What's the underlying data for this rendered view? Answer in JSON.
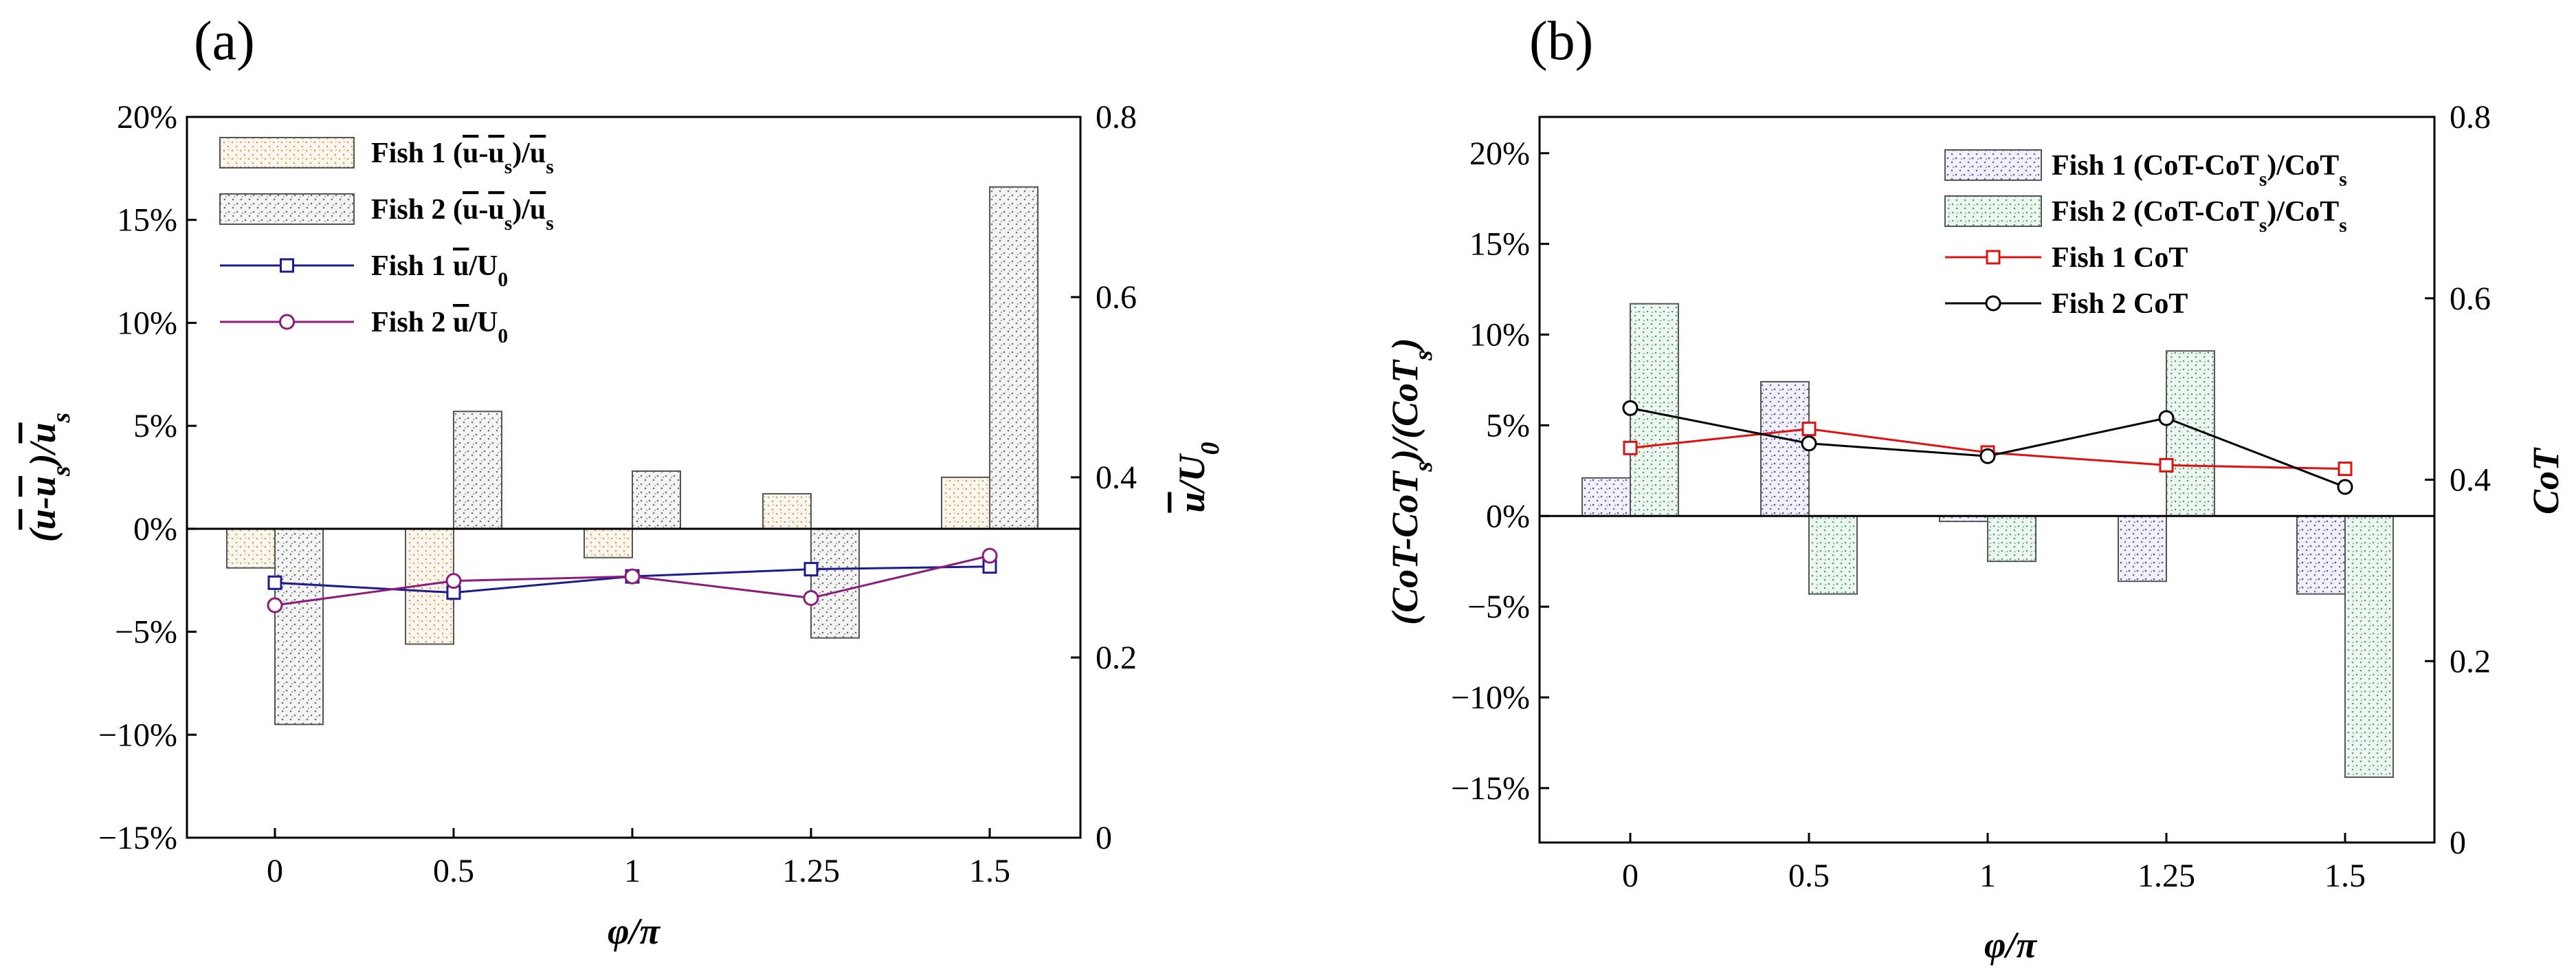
{
  "chart_data": [
    {
      "panel_label": "(a)",
      "type": "bar",
      "title": "",
      "categories": [
        "0",
        "0.5",
        "1",
        "1.25",
        "1.5"
      ],
      "xlabel": "φ/π",
      "ylabel": "(ū-ū_s)/ū_s",
      "ylabel_parts": [
        "(",
        "u",
        "-",
        "u",
        "s",
        ")/",
        "u",
        "s"
      ],
      "y2label": "ū/U₀",
      "y2label_parts": [
        "u",
        "/U",
        "0"
      ],
      "ylim": [
        -15,
        20
      ],
      "y_ticks": [
        20,
        15,
        10,
        5,
        0,
        -5,
        -10,
        -15
      ],
      "y_tick_labels": [
        "20%",
        "15%",
        "10%",
        "5%",
        "0%",
        "−5%",
        "−10%",
        "−15%"
      ],
      "y2lim": [
        0,
        0.8
      ],
      "y2_ticks": [
        0.8,
        0.6,
        0.4,
        0.2,
        0
      ],
      "y2_tick_labels": [
        "0.8",
        "0.6",
        "0.4",
        "0.2",
        "0"
      ],
      "legend_position": "top-left",
      "series": [
        {
          "name": "Fish 1 (ū-ū_s)/ū_s",
          "kind": "bar",
          "axis": "left",
          "color": "#c8a060",
          "legend_parts": [
            "Fish 1 (",
            "u",
            "-",
            "u",
            "s",
            ")/",
            "u",
            "s"
          ],
          "values": [
            -1.9,
            -5.6,
            -1.4,
            1.7,
            2.5
          ]
        },
        {
          "name": "Fish 2 (ū-ū_s)/ū_s",
          "kind": "bar",
          "axis": "left",
          "color": "#707070",
          "legend_parts": [
            "Fish 2 (",
            "u",
            "-",
            "u",
            "s",
            ")/",
            "u",
            "s"
          ],
          "values": [
            -9.5,
            5.7,
            2.8,
            -5.3,
            16.6
          ]
        },
        {
          "name": "Fish 1 ū/U₀",
          "kind": "line",
          "axis": "right",
          "marker": "square",
          "color": "#1c1c8c",
          "legend_parts": [
            "Fish 1 ",
            "u",
            "/U",
            "0"
          ],
          "values": [
            0.283,
            0.272,
            0.29,
            0.298,
            0.301
          ]
        },
        {
          "name": "Fish 2 ū/U₀",
          "kind": "line",
          "axis": "right",
          "marker": "circle",
          "color": "#8c1c7c",
          "legend_parts": [
            "Fish 2 ",
            "u",
            "/U",
            "0"
          ],
          "values": [
            0.258,
            0.285,
            0.29,
            0.266,
            0.313
          ]
        }
      ]
    },
    {
      "panel_label": "(b)",
      "type": "bar",
      "title": "",
      "categories": [
        "0",
        "0.5",
        "1",
        "1.25",
        "1.5"
      ],
      "xlabel": "φ/π",
      "ylabel": "(CoT-CoT_s)/(CoT_s)",
      "ylabel_parts": [
        "(CoT-CoT",
        "s",
        ")/(CoT",
        "s",
        ")"
      ],
      "y2label": "CoT",
      "y2label_parts": [
        "CoT"
      ],
      "ylim": [
        -18,
        22
      ],
      "y_ticks": [
        20,
        15,
        10,
        5,
        0,
        -5,
        -10,
        -15
      ],
      "y_tick_labels": [
        "20%",
        "15%",
        "10%",
        "5%",
        "0%",
        "−5%",
        "−10%",
        "−15%"
      ],
      "y2lim": [
        0,
        0.8
      ],
      "y2_ticks": [
        0.8,
        0.6,
        0.4,
        0.2,
        0
      ],
      "y2_tick_labels": [
        "0.8",
        "0.6",
        "0.4",
        "0.2",
        "0"
      ],
      "legend_position": "top-right",
      "series": [
        {
          "name": "Fish 1 (CoT-CoT_s)/CoT_s",
          "kind": "bar",
          "axis": "left",
          "color": "#5050b0",
          "legend_parts": [
            "Fish 1 (CoT-CoT",
            "s",
            ")/CoT",
            "s"
          ],
          "values": [
            2.1,
            7.4,
            -0.3,
            -3.6,
            -4.3
          ]
        },
        {
          "name": "Fish 2 (CoT-CoT_s)/CoT_s",
          "kind": "bar",
          "axis": "left",
          "color": "#50a070",
          "legend_parts": [
            "Fish 2 (CoT-CoT",
            "s",
            ")/CoT",
            "s"
          ],
          "values": [
            11.7,
            -4.3,
            -2.5,
            9.1,
            -14.4
          ]
        },
        {
          "name": "Fish 1 CoT",
          "kind": "line",
          "axis": "right",
          "marker": "square",
          "color": "#e01010",
          "legend_parts": [
            "Fish 1 CoT"
          ],
          "values": [
            0.435,
            0.456,
            0.43,
            0.416,
            0.412
          ]
        },
        {
          "name": "Fish 2 CoT",
          "kind": "line",
          "axis": "right",
          "marker": "circle",
          "color": "#000000",
          "legend_parts": [
            "Fish 2 CoT"
          ],
          "values": [
            0.479,
            0.44,
            0.426,
            0.468,
            0.392
          ]
        }
      ]
    }
  ]
}
